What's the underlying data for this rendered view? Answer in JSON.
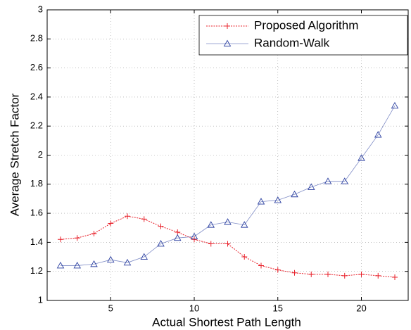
{
  "chart_data": {
    "type": "line",
    "xlabel": "Actual Shortest Path Length",
    "ylabel": "Average Stretch Factor",
    "x": [
      2,
      3,
      4,
      5,
      6,
      7,
      8,
      9,
      10,
      11,
      12,
      13,
      14,
      15,
      16,
      17,
      18,
      19,
      20,
      21,
      22
    ],
    "series": [
      {
        "name": "Proposed Algorithm",
        "color": "#e8202a",
        "marker": "plus",
        "values": [
          1.42,
          1.43,
          1.46,
          1.53,
          1.58,
          1.56,
          1.51,
          1.47,
          1.42,
          1.39,
          1.39,
          1.3,
          1.24,
          1.21,
          1.19,
          1.18,
          1.18,
          1.17,
          1.18,
          1.17,
          1.16
        ]
      },
      {
        "name": "Random-Walk",
        "color": "#2a3fa0",
        "marker": "triangle",
        "values": [
          1.24,
          1.24,
          1.25,
          1.28,
          1.26,
          1.3,
          1.39,
          1.43,
          1.44,
          1.52,
          1.54,
          1.52,
          1.68,
          1.69,
          1.73,
          1.78,
          1.82,
          1.82,
          1.98,
          2.14,
          2.34
        ]
      }
    ],
    "xlim": [
      1.2,
      22.8
    ],
    "xticks": [
      5,
      10,
      15,
      20
    ],
    "ylim": [
      1,
      3
    ],
    "yticks": [
      1,
      1.2,
      1.4,
      1.6,
      1.8,
      2,
      2.2,
      2.4,
      2.6,
      2.8,
      3
    ],
    "grid": true,
    "legend": "upper right"
  }
}
